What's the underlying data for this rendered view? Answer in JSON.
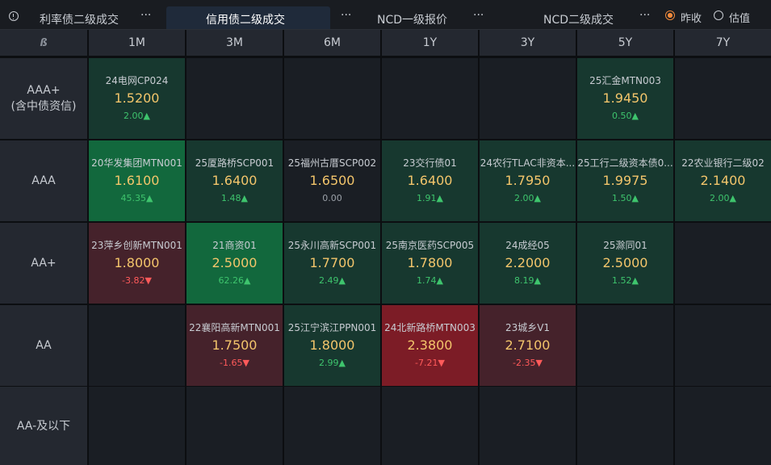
{
  "tabs": [
    {
      "label": "利率债二级成交",
      "more": "···",
      "active": false
    },
    {
      "label": "信用债二级成交",
      "more": "···",
      "active": true
    },
    {
      "label": "NCD一级报价",
      "more": "···",
      "active": false
    },
    {
      "label": "NCD二级成交",
      "more": "···",
      "active": false
    }
  ],
  "radio_options": [
    {
      "label": "昨收",
      "checked": true
    },
    {
      "label": "估值",
      "checked": false
    }
  ],
  "corner_glyph": "ß",
  "columns": [
    "1M",
    "3M",
    "6M",
    "1Y",
    "3Y",
    "5Y",
    "7Y"
  ],
  "rows": [
    {
      "label": "AAA+",
      "sublabel": "(含中债资信)"
    },
    {
      "label": "AAA",
      "sublabel": ""
    },
    {
      "label": "AA+",
      "sublabel": ""
    },
    {
      "label": "AA",
      "sublabel": ""
    },
    {
      "label": "AA-及以下",
      "sublabel": ""
    }
  ],
  "cells": [
    [
      {
        "name": "24电网CP024",
        "yield": "1.5200",
        "change": "2.00",
        "dir": "up",
        "tone": "up"
      },
      null,
      null,
      null,
      null,
      {
        "name": "25汇金MTN003",
        "yield": "1.9450",
        "change": "0.50",
        "dir": "up",
        "tone": "up"
      },
      null
    ],
    [
      {
        "name": "20华发集团MTN001",
        "yield": "1.6100",
        "change": "45.35",
        "dir": "up",
        "tone": "upstrong"
      },
      {
        "name": "25厦路桥SCP001",
        "yield": "1.6400",
        "change": "1.48",
        "dir": "up",
        "tone": "up"
      },
      {
        "name": "25福州古厝SCP002",
        "yield": "1.6500",
        "change": "0.00",
        "dir": "none",
        "tone": "neutral"
      },
      {
        "name": "23交行债01",
        "yield": "1.6400",
        "change": "1.91",
        "dir": "up",
        "tone": "up"
      },
      {
        "name": "24农行TLAC非资本...",
        "yield": "1.7950",
        "change": "2.00",
        "dir": "up",
        "tone": "up"
      },
      {
        "name": "25工行二级资本债0...",
        "yield": "1.9975",
        "change": "1.50",
        "dir": "up",
        "tone": "up"
      },
      {
        "name": "22农业银行二级02",
        "yield": "2.1400",
        "change": "2.00",
        "dir": "up",
        "tone": "up"
      }
    ],
    [
      {
        "name": "23萍乡创新MTN001",
        "yield": "1.8000",
        "change": "-3.82",
        "dir": "down",
        "tone": "down"
      },
      {
        "name": "21商资01",
        "yield": "2.5000",
        "change": "62.26",
        "dir": "up",
        "tone": "upstrong"
      },
      {
        "name": "25永川高新SCP001",
        "yield": "1.7700",
        "change": "2.49",
        "dir": "up",
        "tone": "up"
      },
      {
        "name": "25南京医药SCP005",
        "yield": "1.7800",
        "change": "1.74",
        "dir": "up",
        "tone": "up"
      },
      {
        "name": "24成经05",
        "yield": "2.2000",
        "change": "8.19",
        "dir": "up",
        "tone": "up"
      },
      {
        "name": "25滁同01",
        "yield": "2.5000",
        "change": "1.52",
        "dir": "up",
        "tone": "up"
      },
      null
    ],
    [
      null,
      {
        "name": "22襄阳高新MTN001",
        "yield": "1.7500",
        "change": "-1.65",
        "dir": "down",
        "tone": "down"
      },
      {
        "name": "25江宁滨江PPN001",
        "yield": "1.8000",
        "change": "2.99",
        "dir": "up",
        "tone": "up"
      },
      {
        "name": "24北新路桥MTN003",
        "yield": "2.3800",
        "change": "-7.21",
        "dir": "down",
        "tone": "downstrong"
      },
      {
        "name": "23城乡V1",
        "yield": "2.7100",
        "change": "-2.35",
        "dir": "down",
        "tone": "down"
      },
      null,
      null
    ],
    [
      null,
      null,
      null,
      null,
      null,
      null,
      null
    ]
  ],
  "colors": {
    "up_text": "#3ec46d",
    "down_text": "#ff5a5a",
    "yield_text": "#f3c56b",
    "radio_accent": "#f08a3c"
  }
}
